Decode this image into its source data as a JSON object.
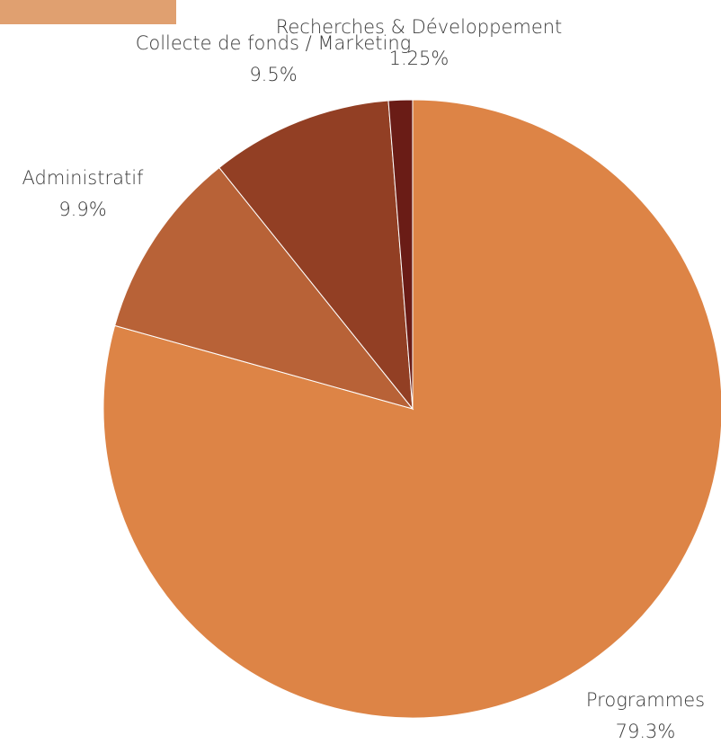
{
  "colors": {
    "corner_accent": "#e0a070",
    "label_text": "#3a3a3a"
  },
  "chart_data": {
    "type": "pie",
    "title": "",
    "start_angle_deg": 0,
    "direction": "clockwise",
    "slices": [
      {
        "label": "Programmes",
        "value_label": "79.3%",
        "value": 79.3,
        "color": "#dd8446"
      },
      {
        "label": "Administratif",
        "value_label": "9.9%",
        "value": 9.9,
        "color": "#b86237"
      },
      {
        "label": "Collecte de fonds / Marketing",
        "value_label": "9.5%",
        "value": 9.5,
        "color": "#923f24"
      },
      {
        "label": "Recherches & Développement",
        "value_label": "1.25%",
        "value": 1.25,
        "color": "#6a1c16"
      }
    ]
  }
}
